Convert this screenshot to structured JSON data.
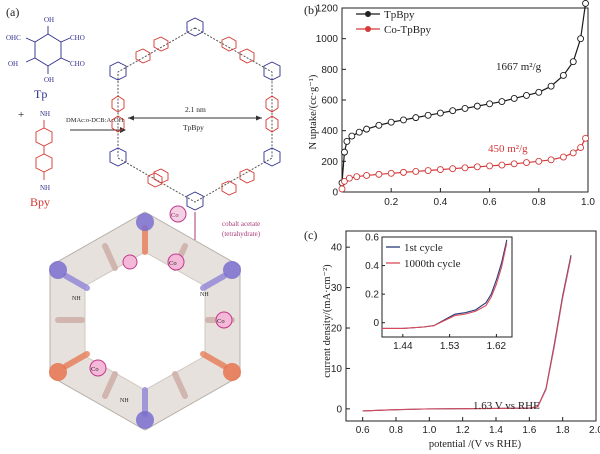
{
  "panel_a": {
    "label": "(a)",
    "tp_label": "Tp",
    "bpy_label": "Bpy",
    "plus": "+",
    "cho_1": "CHO",
    "cho_2": "CHO",
    "cho_3": "CHO",
    "ohc_1": "OHC",
    "oh_1": "OH",
    "oh_2": "OH",
    "oh_3": "OH",
    "nh2_top": "NH",
    "nh2_bottom": "NH",
    "conditions": "DMAc:o-DCB:AcOH",
    "pore_size": "2.1 nm",
    "framework_name": "TpBpy",
    "cobalt_text_line1": "cobalt acetate",
    "cobalt_text_line2": "(tetrahydrate)",
    "co_badge": "Co",
    "nh": "NH",
    "colors": {
      "tp": "#2e2e8c",
      "bpy": "#d4352e",
      "cobalt": "#a83a7a"
    }
  },
  "chart_data": [
    {
      "type": "line",
      "panel": "(b)",
      "xlabel": "",
      "ylabel": "N uptake/(cc·g⁻¹)",
      "xlim": [
        0,
        1.0
      ],
      "ylim": [
        0,
        1200
      ],
      "xticks": [
        "0.2",
        "0.4",
        "0.6",
        "0.8",
        "1.0"
      ],
      "yticks": [
        "0",
        "200",
        "400",
        "600",
        "800",
        "1000",
        "1200"
      ],
      "legend": [
        "TpBpy",
        "Co-TpBpy"
      ],
      "legend_position": "top-left",
      "annotations": [
        "1667 m²/g",
        "450 m²/g"
      ],
      "series": [
        {
          "name": "TpBpy",
          "color": "#1a1a1a",
          "x": [
            0.0,
            0.01,
            0.02,
            0.04,
            0.07,
            0.1,
            0.15,
            0.2,
            0.25,
            0.3,
            0.35,
            0.4,
            0.45,
            0.5,
            0.55,
            0.6,
            0.65,
            0.7,
            0.75,
            0.8,
            0.85,
            0.9,
            0.94,
            0.97,
            0.99
          ],
          "values": [
            60,
            260,
            330,
            365,
            390,
            410,
            435,
            455,
            470,
            485,
            500,
            515,
            530,
            545,
            560,
            575,
            590,
            610,
            630,
            650,
            690,
            760,
            850,
            1000,
            1230
          ]
        },
        {
          "name": "Co-TpBpy",
          "color": "#d43a3a",
          "x": [
            0.0,
            0.01,
            0.03,
            0.06,
            0.1,
            0.15,
            0.2,
            0.25,
            0.3,
            0.35,
            0.4,
            0.45,
            0.5,
            0.55,
            0.6,
            0.65,
            0.7,
            0.75,
            0.8,
            0.85,
            0.9,
            0.94,
            0.97,
            0.99
          ],
          "values": [
            20,
            70,
            90,
            100,
            108,
            115,
            122,
            128,
            134,
            140,
            146,
            152,
            158,
            164,
            170,
            176,
            184,
            192,
            200,
            210,
            228,
            255,
            290,
            350
          ]
        }
      ]
    },
    {
      "type": "line",
      "panel": "(c)",
      "xlabel": "potential /(V vs RHE)",
      "ylabel": "current density/(mA·cm⁻²)",
      "xlim": [
        0.5,
        2.0
      ],
      "ylim": [
        -3,
        44
      ],
      "xticks": [
        "0.6",
        "0.8",
        "1.0",
        "1.2",
        "1.4",
        "1.6",
        "1.8",
        "2.0"
      ],
      "yticks": [
        "0",
        "10",
        "20",
        "30",
        "40"
      ],
      "annotations": [
        "1.63 V vs RHE"
      ],
      "series": [
        {
          "name": "1st cycle",
          "color": "#2a3a7a",
          "x": [
            0.6,
            0.8,
            1.0,
            1.2,
            1.4,
            1.6,
            1.65,
            1.7,
            1.75,
            1.8,
            1.85
          ],
          "values": [
            -0.5,
            -0.2,
            0.0,
            0.05,
            0.1,
            0.2,
            0.5,
            5.0,
            16.0,
            28.0,
            38.0
          ]
        },
        {
          "name": "1000th cycle",
          "color": "#d84a5a",
          "x": [
            0.6,
            0.8,
            1.0,
            1.2,
            1.4,
            1.6,
            1.65,
            1.7,
            1.75,
            1.8,
            1.85
          ],
          "values": [
            -0.5,
            -0.2,
            0.0,
            0.05,
            0.1,
            0.2,
            0.5,
            4.8,
            15.5,
            27.5,
            37.5
          ]
        }
      ],
      "inset": {
        "xlim": [
          1.4,
          1.65
        ],
        "ylim": [
          -0.1,
          0.6
        ],
        "xticks": [
          "1.44",
          "1.53",
          "1.62"
        ],
        "yticks": [
          "0",
          "0.2",
          "0.4",
          "0.6"
        ],
        "legend": [
          "1st cycle",
          "1000th cycle"
        ],
        "legend_position": "top-left",
        "series": [
          {
            "name": "1st cycle",
            "color": "#2a3a7a",
            "x": [
              1.4,
              1.44,
              1.48,
              1.5,
              1.52,
              1.54,
              1.56,
              1.58,
              1.6,
              1.61,
              1.62,
              1.63,
              1.64
            ],
            "values": [
              -0.04,
              -0.04,
              -0.03,
              -0.02,
              0.02,
              0.06,
              0.07,
              0.09,
              0.14,
              0.2,
              0.3,
              0.42,
              0.58
            ]
          },
          {
            "name": "1000th cycle",
            "color": "#d84a5a",
            "x": [
              1.4,
              1.44,
              1.48,
              1.5,
              1.52,
              1.54,
              1.56,
              1.58,
              1.6,
              1.61,
              1.62,
              1.63,
              1.64
            ],
            "values": [
              -0.04,
              -0.04,
              -0.03,
              -0.02,
              0.015,
              0.05,
              0.06,
              0.08,
              0.12,
              0.18,
              0.27,
              0.39,
              0.56
            ]
          }
        ]
      }
    }
  ]
}
